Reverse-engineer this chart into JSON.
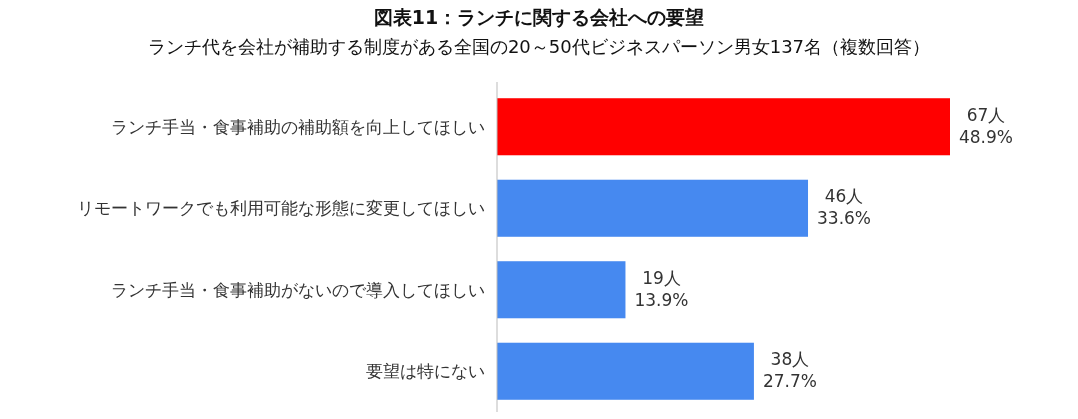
{
  "chart_data": {
    "type": "bar",
    "orientation": "horizontal",
    "title": "図表11：ランチに関する会社への要望",
    "subtitle": "ランチ代を会社が補助する制度がある全国の20～50代ビジネスパーソン男女137名（複数回答）",
    "categories": [
      "ランチ手当・食事補助の補助額を向上してほしい",
      "リモートワークでも利用可能な形態に変更してほしい",
      "ランチ手当・食事補助がないので導入してほしい",
      "要望は特にない"
    ],
    "values": [
      67,
      46,
      19,
      38
    ],
    "colors": [
      "#ff0000",
      "#4689f0",
      "#4689f0",
      "#4689f0"
    ],
    "value_labels": [
      "67人\n48.9%",
      "46人\n33.6%",
      "19人\n13.9%",
      "38人\n27.7%"
    ]
  }
}
